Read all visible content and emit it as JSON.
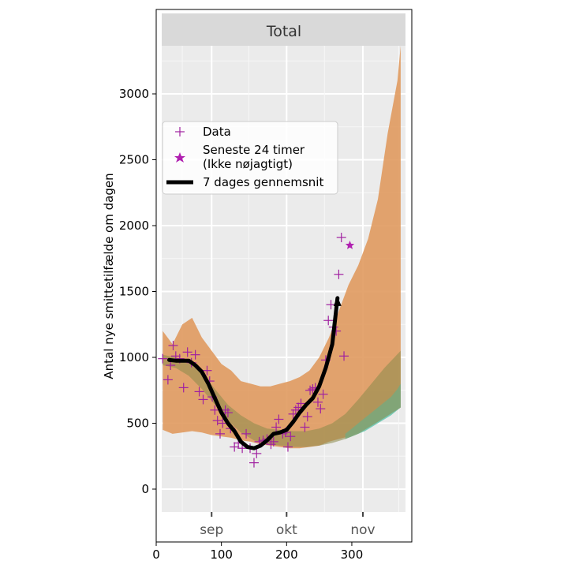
{
  "chart_data": {
    "type": "line",
    "facet_title": "Total",
    "ylabel": "Antal nye smittetilfælde om dagen",
    "xlabel": "",
    "xlim": [
      0,
      392
    ],
    "ylim": [
      -400,
      3700
    ],
    "x_ticks": [
      0,
      100,
      200,
      300
    ],
    "y_ticks": [
      0,
      500,
      1000,
      1500,
      2000,
      2500,
      3000
    ],
    "month_ticks": [
      {
        "label": "sep",
        "x": 85
      },
      {
        "label": "okt",
        "x": 200
      },
      {
        "label": "nov",
        "x": 317
      }
    ],
    "grid": true,
    "legend_position": "upper-left",
    "legend": {
      "data_label": "Data",
      "latest_label_line1": "Seneste 24 timer",
      "latest_label_line2": "(Ikke nøjagtigt)",
      "avg_label": "7 dages gennemsnit"
    },
    "colors": {
      "panel_bg": "#ebebeb",
      "strip_bg": "#d9d9d9",
      "orange_band": "#e09a5f",
      "teal_band": "#6cc9b4",
      "data_marker": "#a020a0",
      "avg_line": "#000000"
    },
    "orange_band": {
      "x": [
        10,
        25,
        40,
        55,
        70,
        85,
        100,
        115,
        130,
        145,
        160,
        175,
        190,
        205,
        220,
        235,
        250,
        265,
        280,
        295,
        310,
        325,
        340,
        355,
        370,
        375
      ],
      "upper": [
        1200,
        1100,
        1250,
        1300,
        1150,
        1050,
        950,
        900,
        820,
        800,
        780,
        780,
        800,
        820,
        850,
        900,
        1000,
        1150,
        1350,
        1550,
        1700,
        1900,
        2200,
        2700,
        3100,
        3400
      ],
      "lower": [
        450,
        420,
        430,
        440,
        430,
        410,
        400,
        390,
        370,
        360,
        340,
        330,
        320,
        310,
        310,
        320,
        330,
        360,
        380,
        400,
        430,
        470,
        510,
        560,
        600,
        620
      ]
    },
    "teal_band": {
      "x": [
        290,
        300,
        310,
        320,
        330,
        340,
        350,
        360,
        370,
        375
      ],
      "upper": [
        420,
        460,
        500,
        540,
        580,
        620,
        660,
        700,
        760,
        800
      ],
      "lower": [
        380,
        400,
        420,
        440,
        470,
        500,
        530,
        560,
        600,
        620
      ]
    },
    "olive_band": {
      "x": [
        10,
        30,
        50,
        70,
        90,
        110,
        130,
        150,
        170,
        190,
        210,
        230,
        250,
        270,
        290,
        310,
        330,
        350,
        375
      ],
      "upper": [
        1020,
        1000,
        960,
        880,
        760,
        640,
        560,
        500,
        460,
        450,
        440,
        440,
        460,
        500,
        570,
        680,
        800,
        920,
        1050
      ],
      "lower": [
        940,
        920,
        860,
        760,
        640,
        520,
        430,
        370,
        340,
        330,
        320,
        320,
        330,
        350,
        380,
        420,
        480,
        540,
        620
      ]
    },
    "seven_day_average": {
      "x": [
        20,
        30,
        40,
        50,
        60,
        70,
        80,
        90,
        100,
        110,
        120,
        130,
        140,
        150,
        160,
        170,
        180,
        190,
        200,
        210,
        220,
        230,
        240,
        250,
        260,
        270,
        278
      ],
      "y": [
        980,
        975,
        975,
        975,
        940,
        890,
        800,
        690,
        580,
        500,
        440,
        360,
        320,
        310,
        330,
        370,
        420,
        430,
        450,
        510,
        580,
        640,
        690,
        780,
        920,
        1100,
        1450
      ]
    },
    "data_points": {
      "x": [
        10,
        18,
        22,
        26,
        30,
        36,
        42,
        48,
        54,
        60,
        66,
        72,
        78,
        82,
        86,
        90,
        94,
        98,
        102,
        106,
        110,
        114,
        120,
        126,
        132,
        138,
        144,
        150,
        154,
        158,
        164,
        170,
        176,
        180,
        184,
        188,
        194,
        198,
        202,
        206,
        210,
        214,
        218,
        222,
        228,
        232,
        236,
        240,
        244,
        248,
        252,
        256,
        260,
        264,
        268,
        272,
        276,
        280,
        284,
        288
      ],
      "y": [
        990,
        830,
        940,
        1090,
        1010,
        990,
        770,
        1040,
        960,
        1020,
        740,
        680,
        900,
        820,
        700,
        600,
        520,
        420,
        500,
        600,
        580,
        460,
        320,
        350,
        310,
        420,
        310,
        200,
        270,
        360,
        370,
        380,
        340,
        360,
        470,
        530,
        420,
        430,
        320,
        400,
        570,
        600,
        620,
        650,
        470,
        550,
        750,
        760,
        770,
        660,
        610,
        720,
        980,
        1280,
        1400,
        1230,
        1200,
        1630,
        1910,
        1010
      ]
    },
    "latest_point": {
      "x": 297,
      "y": 1850
    }
  }
}
